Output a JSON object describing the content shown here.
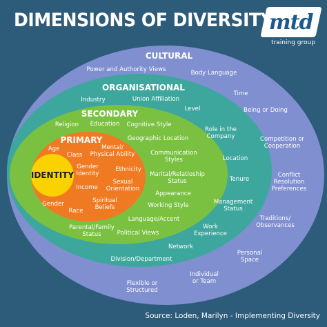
{
  "title": "DIMENSIONS OF DIVERSITY",
  "logo": {
    "main": "mtd",
    "sub": "training group"
  },
  "colors": {
    "background": "#2d5b7a",
    "cultural": "#7f8fd0",
    "organisational": "#3ea79d",
    "secondary": "#7ac142",
    "primary": "#f07a22",
    "identity": "#f9d200"
  },
  "layers": {
    "cultural": {
      "heading": "CULTURAL",
      "items": [
        "Power and Authority Views",
        "Body Language",
        "Time",
        "Being or Doing",
        "Competition or\nCooperation",
        "Conflict\nResolution\nPreferences",
        "Traditions/\nObservances",
        "Personal\nSpace",
        "Individual\nor Team",
        "Flexible or\nStructured"
      ]
    },
    "organisational": {
      "heading": "ORGANISATIONAL",
      "items": [
        "Industry",
        "Union Affiliation",
        "Level",
        "Role in the\nCompany",
        "Location",
        "Tenure",
        "Management\nStatus",
        "Work\nExperience",
        "Network",
        "Division/Department"
      ]
    },
    "secondary": {
      "heading": "SECONDARY",
      "items": [
        "Religion",
        "Education",
        "Cognitive Style",
        "Geographic Location",
        "Communication\nStyles",
        "Marital/Relatioship\nStatus",
        "Appearance",
        "Working Style",
        "Language/Accent",
        "Political Views",
        "Parental/Family\nStatus"
      ]
    },
    "primary": {
      "heading": "PRIMARY",
      "items": [
        "Age",
        "Class",
        "Mental/\nPhysical Ability",
        "Gender\nIdentity",
        "Ethnicity",
        "Income",
        "Sexual\nOrientation",
        "Gender",
        "Race",
        "Spiritual\nBeliefs"
      ]
    },
    "identity": {
      "label": "IDENTITY"
    }
  },
  "source": "Source: Loden, Marilyn - Implementing Diversity"
}
